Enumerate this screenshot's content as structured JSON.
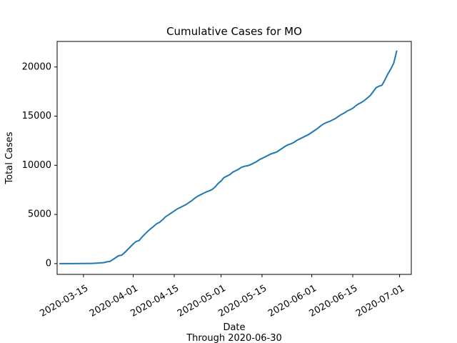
{
  "chart_data": {
    "type": "line",
    "title": "Cumulative Cases for MO",
    "xlabel": "Date",
    "xlabel_sub": "Through 2020-06-30",
    "ylabel": "Total Cases",
    "xlim": [
      "2020-03-06",
      "2020-07-05"
    ],
    "ylim": [
      -1100,
      22600
    ],
    "xticks": [
      "2020-03-15",
      "2020-04-01",
      "2020-04-15",
      "2020-05-01",
      "2020-05-15",
      "2020-06-01",
      "2020-06-15",
      "2020-07-01"
    ],
    "yticks": [
      0,
      5000,
      10000,
      15000,
      20000
    ],
    "grid": false,
    "line_color": "#1f77b4",
    "series": [
      {
        "x": [
          "2020-03-07",
          "2020-03-10",
          "2020-03-14",
          "2020-03-18",
          "2020-03-20",
          "2020-03-22",
          "2020-03-23",
          "2020-03-24",
          "2020-03-25",
          "2020-03-26",
          "2020-03-27",
          "2020-03-28",
          "2020-03-29",
          "2020-03-30",
          "2020-03-31",
          "2020-04-01",
          "2020-04-02",
          "2020-04-03",
          "2020-04-04",
          "2020-04-05",
          "2020-04-06",
          "2020-04-07",
          "2020-04-08",
          "2020-04-09",
          "2020-04-10",
          "2020-04-11",
          "2020-04-12",
          "2020-04-13",
          "2020-04-14",
          "2020-04-15",
          "2020-04-16",
          "2020-04-17",
          "2020-04-18",
          "2020-04-19",
          "2020-04-20",
          "2020-04-21",
          "2020-04-22",
          "2020-04-23",
          "2020-04-24",
          "2020-04-25",
          "2020-04-26",
          "2020-04-27",
          "2020-04-28",
          "2020-04-29",
          "2020-04-30",
          "2020-05-01",
          "2020-05-02",
          "2020-05-03",
          "2020-05-04",
          "2020-05-05",
          "2020-05-06",
          "2020-05-07",
          "2020-05-08",
          "2020-05-09",
          "2020-05-10",
          "2020-05-11",
          "2020-05-12",
          "2020-05-13",
          "2020-05-14",
          "2020-05-15",
          "2020-05-16",
          "2020-05-17",
          "2020-05-18",
          "2020-05-19",
          "2020-05-20",
          "2020-05-21",
          "2020-05-22",
          "2020-05-23",
          "2020-05-24",
          "2020-05-25",
          "2020-05-26",
          "2020-05-27",
          "2020-05-28",
          "2020-05-29",
          "2020-05-30",
          "2020-05-31",
          "2020-06-01",
          "2020-06-02",
          "2020-06-03",
          "2020-06-04",
          "2020-06-05",
          "2020-06-06",
          "2020-06-07",
          "2020-06-08",
          "2020-06-09",
          "2020-06-10",
          "2020-06-11",
          "2020-06-12",
          "2020-06-13",
          "2020-06-14",
          "2020-06-15",
          "2020-06-16",
          "2020-06-17",
          "2020-06-18",
          "2020-06-19",
          "2020-06-20",
          "2020-06-21",
          "2020-06-22",
          "2020-06-23",
          "2020-06-24",
          "2020-06-25",
          "2020-06-26",
          "2020-06-27",
          "2020-06-28",
          "2020-06-29",
          "2020-06-30"
        ],
        "y": [
          0,
          0,
          5,
          15,
          50,
          100,
          180,
          220,
          400,
          600,
          800,
          850,
          1100,
          1400,
          1700,
          2000,
          2250,
          2350,
          2700,
          3000,
          3300,
          3550,
          3800,
          4050,
          4200,
          4450,
          4750,
          4950,
          5150,
          5350,
          5550,
          5700,
          5850,
          6000,
          6200,
          6400,
          6650,
          6850,
          7000,
          7150,
          7300,
          7400,
          7550,
          7800,
          8150,
          8400,
          8750,
          8900,
          9050,
          9300,
          9450,
          9600,
          9800,
          9900,
          9950,
          10050,
          10200,
          10350,
          10550,
          10700,
          10850,
          11000,
          11150,
          11250,
          11350,
          11550,
          11750,
          11950,
          12100,
          12200,
          12350,
          12550,
          12700,
          12850,
          13000,
          13150,
          13350,
          13550,
          13750,
          14000,
          14200,
          14350,
          14450,
          14600,
          14750,
          14950,
          15150,
          15300,
          15500,
          15650,
          15800,
          16050,
          16250,
          16400,
          16600,
          16850,
          17100,
          17500,
          17900,
          18050,
          18150,
          18700,
          19300,
          19800,
          20400,
          21600
        ]
      }
    ]
  }
}
